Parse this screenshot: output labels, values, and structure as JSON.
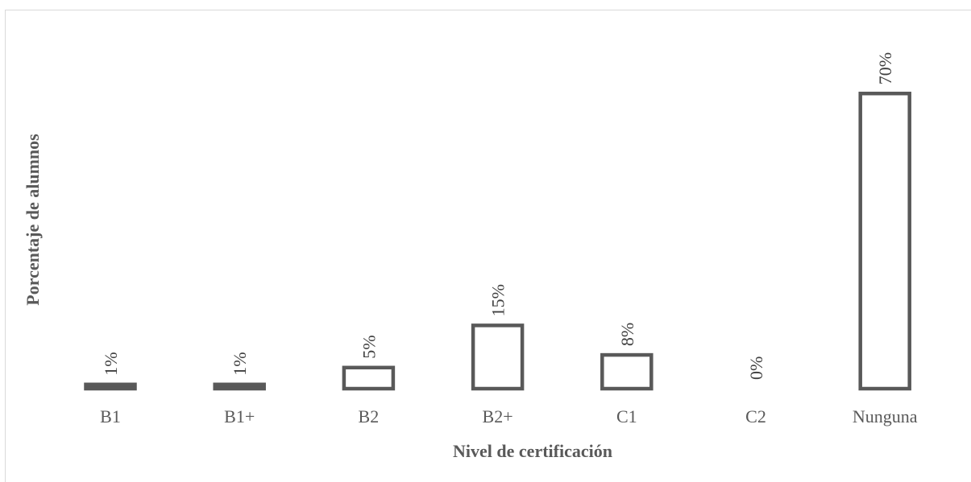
{
  "chart_data": {
    "type": "bar",
    "title": "",
    "xlabel": "Nivel de certificación",
    "ylabel": "Porcentaje de alumnos",
    "categories": [
      "B1",
      "B1+",
      "B2",
      "B2+",
      "C1",
      "C2",
      "Nunguna"
    ],
    "values": [
      1,
      1,
      5,
      15,
      8,
      0,
      70
    ],
    "data_labels": [
      "1%",
      "1%",
      "5%",
      "15%",
      "8%",
      "0%",
      "70%"
    ],
    "unit": "%",
    "ylim": [
      0,
      80
    ],
    "grid": false,
    "legend": "none",
    "bar_style": "outline",
    "bar_stroke_color": "#595959",
    "bar_fill_color": "#ffffff"
  }
}
